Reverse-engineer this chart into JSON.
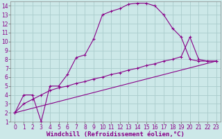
{
  "xlabel": "Windchill (Refroidissement éolien,°C)",
  "xlim": [
    -0.5,
    23.5
  ],
  "ylim": [
    1,
    14.5
  ],
  "xticks": [
    0,
    1,
    2,
    3,
    4,
    5,
    6,
    7,
    8,
    9,
    10,
    11,
    12,
    13,
    14,
    15,
    16,
    17,
    18,
    19,
    20,
    21,
    22,
    23
  ],
  "yticks": [
    1,
    2,
    3,
    4,
    5,
    6,
    7,
    8,
    9,
    10,
    11,
    12,
    13,
    14
  ],
  "bg_color": "#cce8e8",
  "grid_color": "#aacccc",
  "line_color": "#880088",
  "line1_x": [
    0,
    1,
    2,
    3,
    4,
    5,
    6,
    7,
    8,
    9,
    10,
    11,
    12,
    13,
    14,
    15,
    16,
    17,
    18,
    19,
    20,
    21,
    22,
    23
  ],
  "line1_y": [
    2,
    4,
    4,
    1,
    5,
    5,
    6.3,
    8.2,
    8.5,
    10.3,
    13.0,
    13.4,
    13.7,
    14.2,
    14.3,
    14.3,
    14.0,
    13.0,
    11.5,
    10.5,
    8.0,
    7.8,
    7.8,
    7.8
  ],
  "line2_x": [
    0,
    1,
    2,
    3,
    4,
    5,
    6,
    7,
    8,
    9,
    10,
    11,
    12,
    13,
    14,
    15,
    16,
    17,
    18,
    19,
    20,
    21,
    22,
    23
  ],
  "line2_y": [
    2,
    3,
    3.5,
    4,
    4.5,
    4.8,
    5.0,
    5.3,
    5.5,
    5.8,
    6.0,
    6.3,
    6.5,
    6.8,
    7.0,
    7.3,
    7.5,
    7.8,
    8.0,
    8.3,
    10.5,
    8.0,
    7.8,
    7.8
  ],
  "line3_x": [
    0,
    23
  ],
  "line3_y": [
    2,
    7.8
  ],
  "tick_fontsize": 5.5,
  "xlabel_fontsize": 6.5
}
